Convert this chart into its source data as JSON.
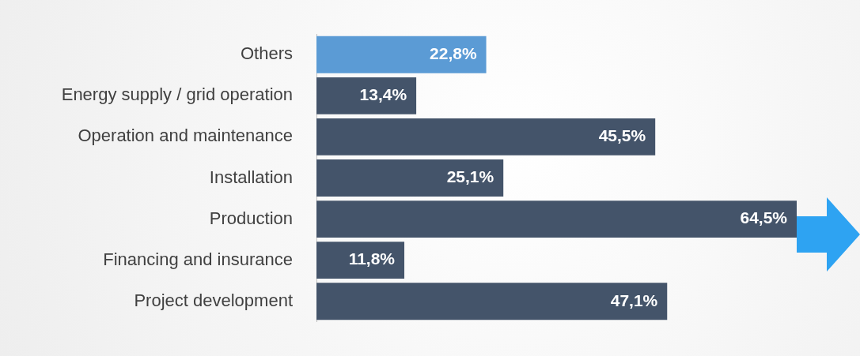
{
  "chart_data": {
    "type": "bar",
    "orientation": "horizontal",
    "categories": [
      "Others",
      "Energy supply / grid operation",
      "Operation and maintenance",
      "Installation",
      "Production",
      "Financing and insurance",
      "Project development"
    ],
    "values": [
      22.8,
      13.4,
      45.5,
      25.1,
      64.5,
      11.8,
      47.1
    ],
    "value_labels": [
      "22,8%",
      "13,4%",
      "45,5%",
      "25,1%",
      "64,5%",
      "11,8%",
      "47,1%"
    ],
    "colors": [
      "#5b9bd5",
      "#44546a",
      "#44546a",
      "#44546a",
      "#44546a",
      "#44546a",
      "#44546a"
    ],
    "xlim": [
      0,
      73
    ],
    "tick_labels": "y"
  }
}
